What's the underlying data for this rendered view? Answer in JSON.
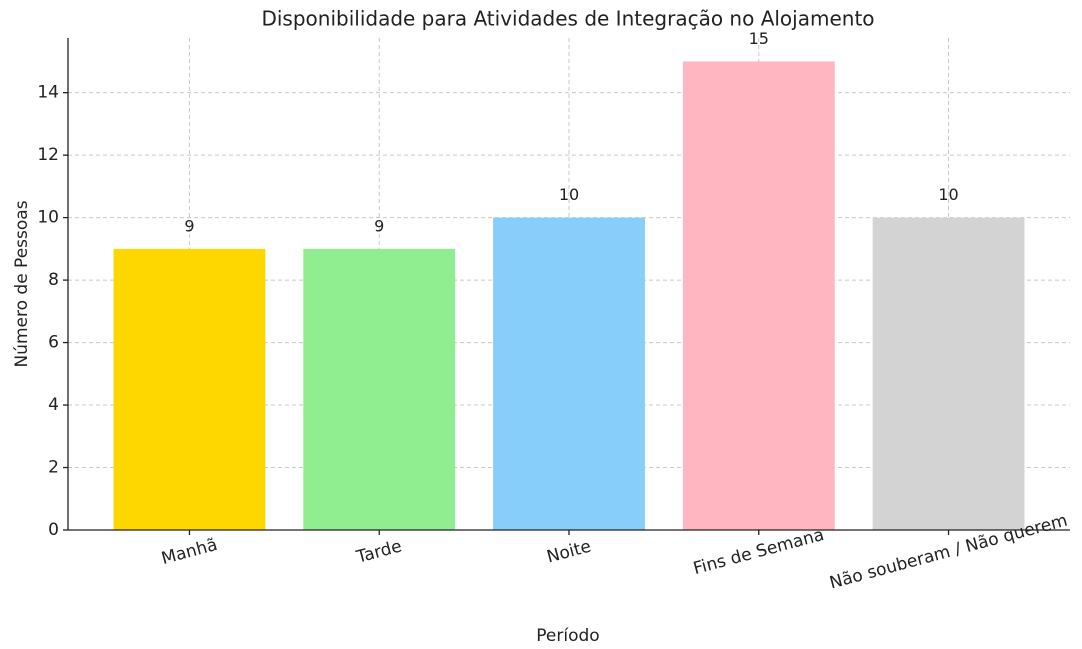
{
  "chart_data": {
    "type": "bar",
    "title": "Disponibilidade para Atividades de Integração no Alojamento",
    "xlabel": "Período",
    "ylabel": "Número de Pessoas",
    "categories": [
      "Manhã",
      "Tarde",
      "Noite",
      "Fins de Semana",
      "Não souberam / Não querem"
    ],
    "values": [
      9,
      9,
      10,
      15,
      10
    ],
    "colors": [
      "#ffd700",
      "#90ee90",
      "#87cefa",
      "#ffb6c1",
      "#d3d3d3"
    ],
    "ylim": [
      0,
      15.75
    ],
    "yticks": [
      0,
      2,
      4,
      6,
      8,
      10,
      12,
      14
    ],
    "grid": true
  }
}
